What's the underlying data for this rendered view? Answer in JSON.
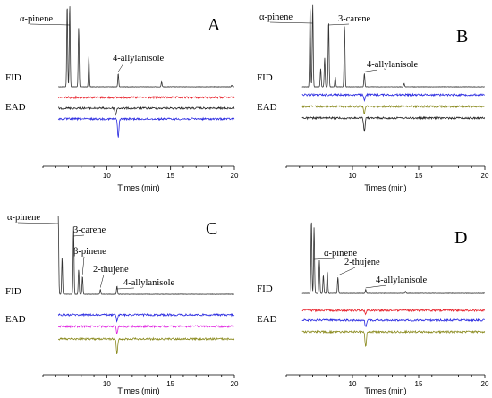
{
  "chart_data": [
    {
      "panel": "A",
      "type": "line",
      "xlabel": "Times (min)",
      "xlim": [
        5,
        20
      ],
      "xticks": [
        10,
        15,
        20
      ],
      "track_labels": [
        "FID",
        "EAD"
      ],
      "annotations": [
        {
          "text": "α-pinene",
          "x": 7.1
        },
        {
          "text": "4-allylanisole",
          "x": 10.9
        }
      ],
      "fid_peaks": [
        {
          "x": 6.9,
          "h": 1.0
        },
        {
          "x": 7.1,
          "h": 1.0
        },
        {
          "x": 7.8,
          "h": 0.72
        },
        {
          "x": 8.6,
          "h": 0.38
        },
        {
          "x": 10.9,
          "h": 0.16
        },
        {
          "x": 14.3,
          "h": 0.06
        },
        {
          "x": 19.8,
          "h": 0.02
        }
      ],
      "ead_traces": [
        {
          "color": "#e8202a",
          "dips": []
        },
        {
          "color": "#222222",
          "dips": [
            {
              "x": 10.7,
              "d": 8
            }
          ]
        },
        {
          "color": "#2828e0",
          "dips": [
            {
              "x": 10.9,
              "d": 22
            }
          ]
        }
      ]
    },
    {
      "panel": "B",
      "type": "line",
      "xlabel": "Times (min)",
      "xlim": [
        5,
        20
      ],
      "xticks": [
        10,
        15,
        20
      ],
      "track_labels": [
        "FID",
        "EAD"
      ],
      "annotations": [
        {
          "text": "α-pinene",
          "x": 6.9
        },
        {
          "text": "3-carene",
          "x": 8.2
        },
        {
          "text": "4-allylanisole",
          "x": 10.9
        }
      ],
      "fid_peaks": [
        {
          "x": 6.8,
          "h": 1.0
        },
        {
          "x": 7.0,
          "h": 1.0
        },
        {
          "x": 7.6,
          "h": 0.22
        },
        {
          "x": 7.9,
          "h": 0.35
        },
        {
          "x": 8.2,
          "h": 0.8
        },
        {
          "x": 8.7,
          "h": 0.12
        },
        {
          "x": 9.4,
          "h": 0.75
        },
        {
          "x": 10.9,
          "h": 0.16
        },
        {
          "x": 13.9,
          "h": 0.04
        }
      ],
      "ead_traces": [
        {
          "color": "#2828e0",
          "dips": [
            {
              "x": 10.9,
              "d": 6
            }
          ]
        },
        {
          "color": "#8a8a1e",
          "dips": [
            {
              "x": 10.9,
              "d": 8
            }
          ]
        },
        {
          "color": "#222222",
          "dips": [
            {
              "x": 10.9,
              "d": 16
            }
          ]
        }
      ]
    },
    {
      "panel": "C",
      "type": "line",
      "xlabel": "Times (min)",
      "xlim": [
        5,
        20
      ],
      "xticks": [
        10,
        15,
        20
      ],
      "track_labels": [
        "FID",
        "EAD"
      ],
      "annotations": [
        {
          "text": "α-pinene",
          "x": 6.3
        },
        {
          "text": "3-carene",
          "x": 7.4
        },
        {
          "text": "β-pinene",
          "x": 8.1
        },
        {
          "text": "2-thujene",
          "x": 9.5
        },
        {
          "text": "4-allylanisole",
          "x": 10.8
        }
      ],
      "fid_peaks": [
        {
          "x": 6.2,
          "h": 0.95
        },
        {
          "x": 6.5,
          "h": 0.45
        },
        {
          "x": 7.4,
          "h": 0.82
        },
        {
          "x": 7.8,
          "h": 0.3
        },
        {
          "x": 8.1,
          "h": 0.22
        },
        {
          "x": 9.5,
          "h": 0.06
        },
        {
          "x": 10.8,
          "h": 0.1
        }
      ],
      "ead_traces": [
        {
          "color": "#2828e0",
          "dips": [
            {
              "x": 10.8,
              "d": 8
            }
          ]
        },
        {
          "color": "#e020e0",
          "dips": [
            {
              "x": 10.8,
              "d": 8
            }
          ]
        },
        {
          "color": "#8a8a1e",
          "dips": [
            {
              "x": 10.8,
              "d": 18
            }
          ]
        }
      ]
    },
    {
      "panel": "D",
      "type": "line",
      "xlabel": "Times (min)",
      "xlim": [
        5,
        20
      ],
      "xticks": [
        10,
        15,
        20
      ],
      "track_labels": [
        "FID",
        "EAD"
      ],
      "annotations": [
        {
          "text": "α-pinene",
          "x": 7.1
        },
        {
          "text": "2-thujene",
          "x": 8.9
        },
        {
          "text": "4-allylanisole",
          "x": 11.0
        }
      ],
      "fid_peaks": [
        {
          "x": 6.9,
          "h": 1.0
        },
        {
          "x": 7.1,
          "h": 0.9
        },
        {
          "x": 7.5,
          "h": 0.45
        },
        {
          "x": 7.8,
          "h": 0.25
        },
        {
          "x": 8.1,
          "h": 0.3
        },
        {
          "x": 8.9,
          "h": 0.22
        },
        {
          "x": 11.0,
          "h": 0.05
        },
        {
          "x": 14.0,
          "h": 0.03
        }
      ],
      "ead_traces": [
        {
          "color": "#e8202a",
          "dips": [
            {
              "x": 11.0,
              "d": 4
            }
          ]
        },
        {
          "color": "#2828e0",
          "dips": [
            {
              "x": 11.0,
              "d": 8
            }
          ]
        },
        {
          "color": "#8a8a1e",
          "dips": [
            {
              "x": 11.0,
              "d": 18
            }
          ]
        }
      ]
    }
  ]
}
